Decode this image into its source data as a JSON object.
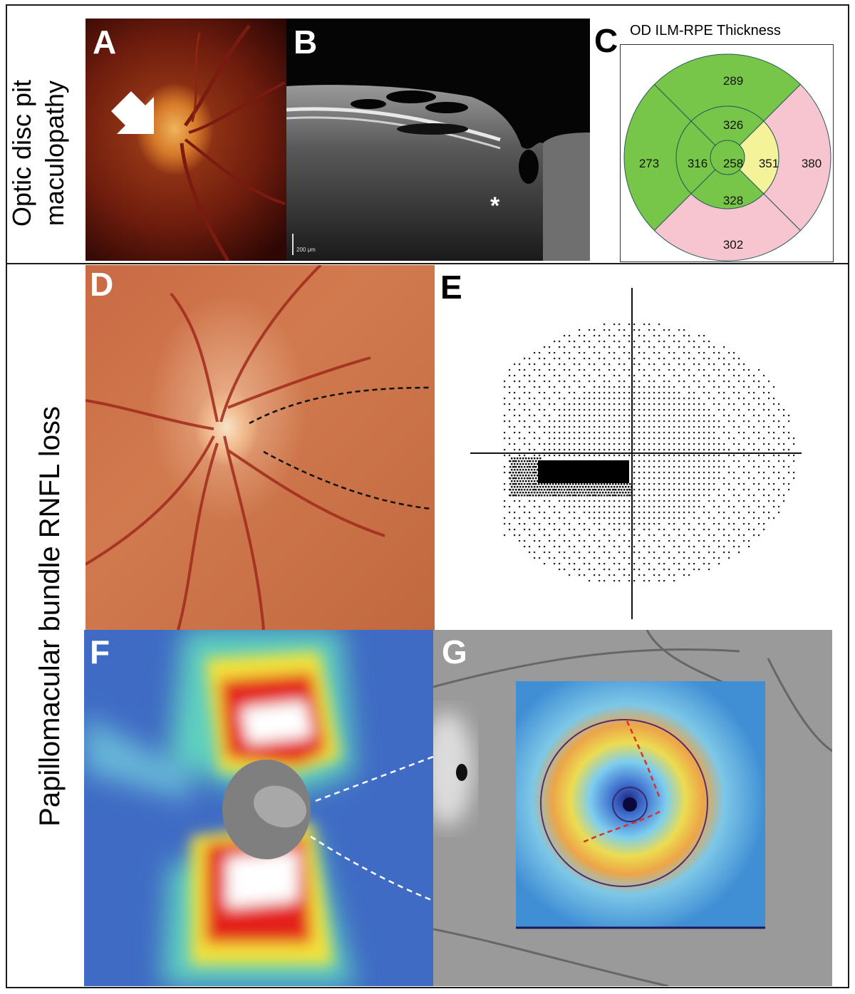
{
  "row_labels": {
    "top_line1": "Optic disc pit",
    "top_line2": "maculopathy",
    "bottom": "Papillomacular bundle RNFL loss"
  },
  "panels": {
    "A": {
      "letter": "A"
    },
    "B": {
      "letter": "B",
      "scale_bar": "200 μm",
      "asterisk": "*"
    },
    "C": {
      "letter": "C",
      "title": "OD ILM-RPE Thickness",
      "values": {
        "center": "258",
        "inner_superior": "326",
        "inner_inferior": "328",
        "inner_nasal": "351",
        "inner_temporal": "316",
        "outer_superior": "289",
        "outer_inferior": "302",
        "outer_nasal": "380",
        "outer_temporal": "273"
      },
      "colors": {
        "green": "#77c64a",
        "pink": "#f6c5cf",
        "yellow": "#f5f39a"
      }
    },
    "D": {
      "letter": "D"
    },
    "E": {
      "letter": "E"
    },
    "F": {
      "letter": "F"
    },
    "G": {
      "letter": "G"
    }
  }
}
